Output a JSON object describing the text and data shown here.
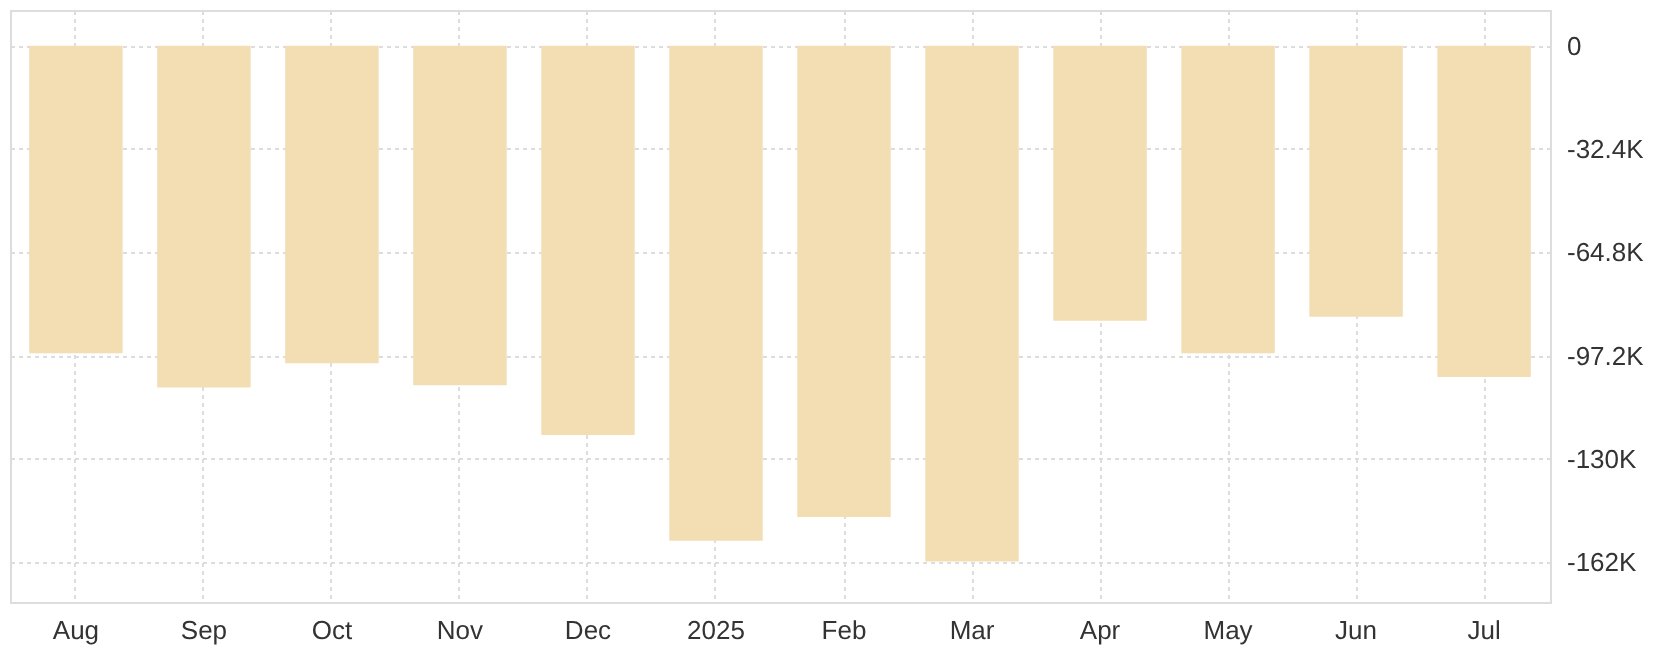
{
  "chart_data": {
    "type": "bar",
    "categories": [
      "Aug",
      "Sep",
      "Oct",
      "Nov",
      "Dec",
      "2025",
      "Feb",
      "Mar",
      "Apr",
      "May",
      "Jun",
      "Jul"
    ],
    "values": [
      -96500,
      -107200,
      -99600,
      -106500,
      -122100,
      -155300,
      -147800,
      -161800,
      -86300,
      -96500,
      -85000,
      -103900
    ],
    "color": "#f3ddb3",
    "ylim": [
      -174500,
      11200
    ],
    "yticks": [
      0,
      {
        "value": -32400,
        "label": "-32.4K"
      },
      {
        "value": -64800,
        "label": "-64.8K"
      },
      {
        "value": -97200,
        "label": "-97.2K"
      },
      {
        "value": -129600,
        "label": "-130K"
      },
      {
        "value": -162000,
        "label": "-162K"
      }
    ],
    "grid": true
  }
}
